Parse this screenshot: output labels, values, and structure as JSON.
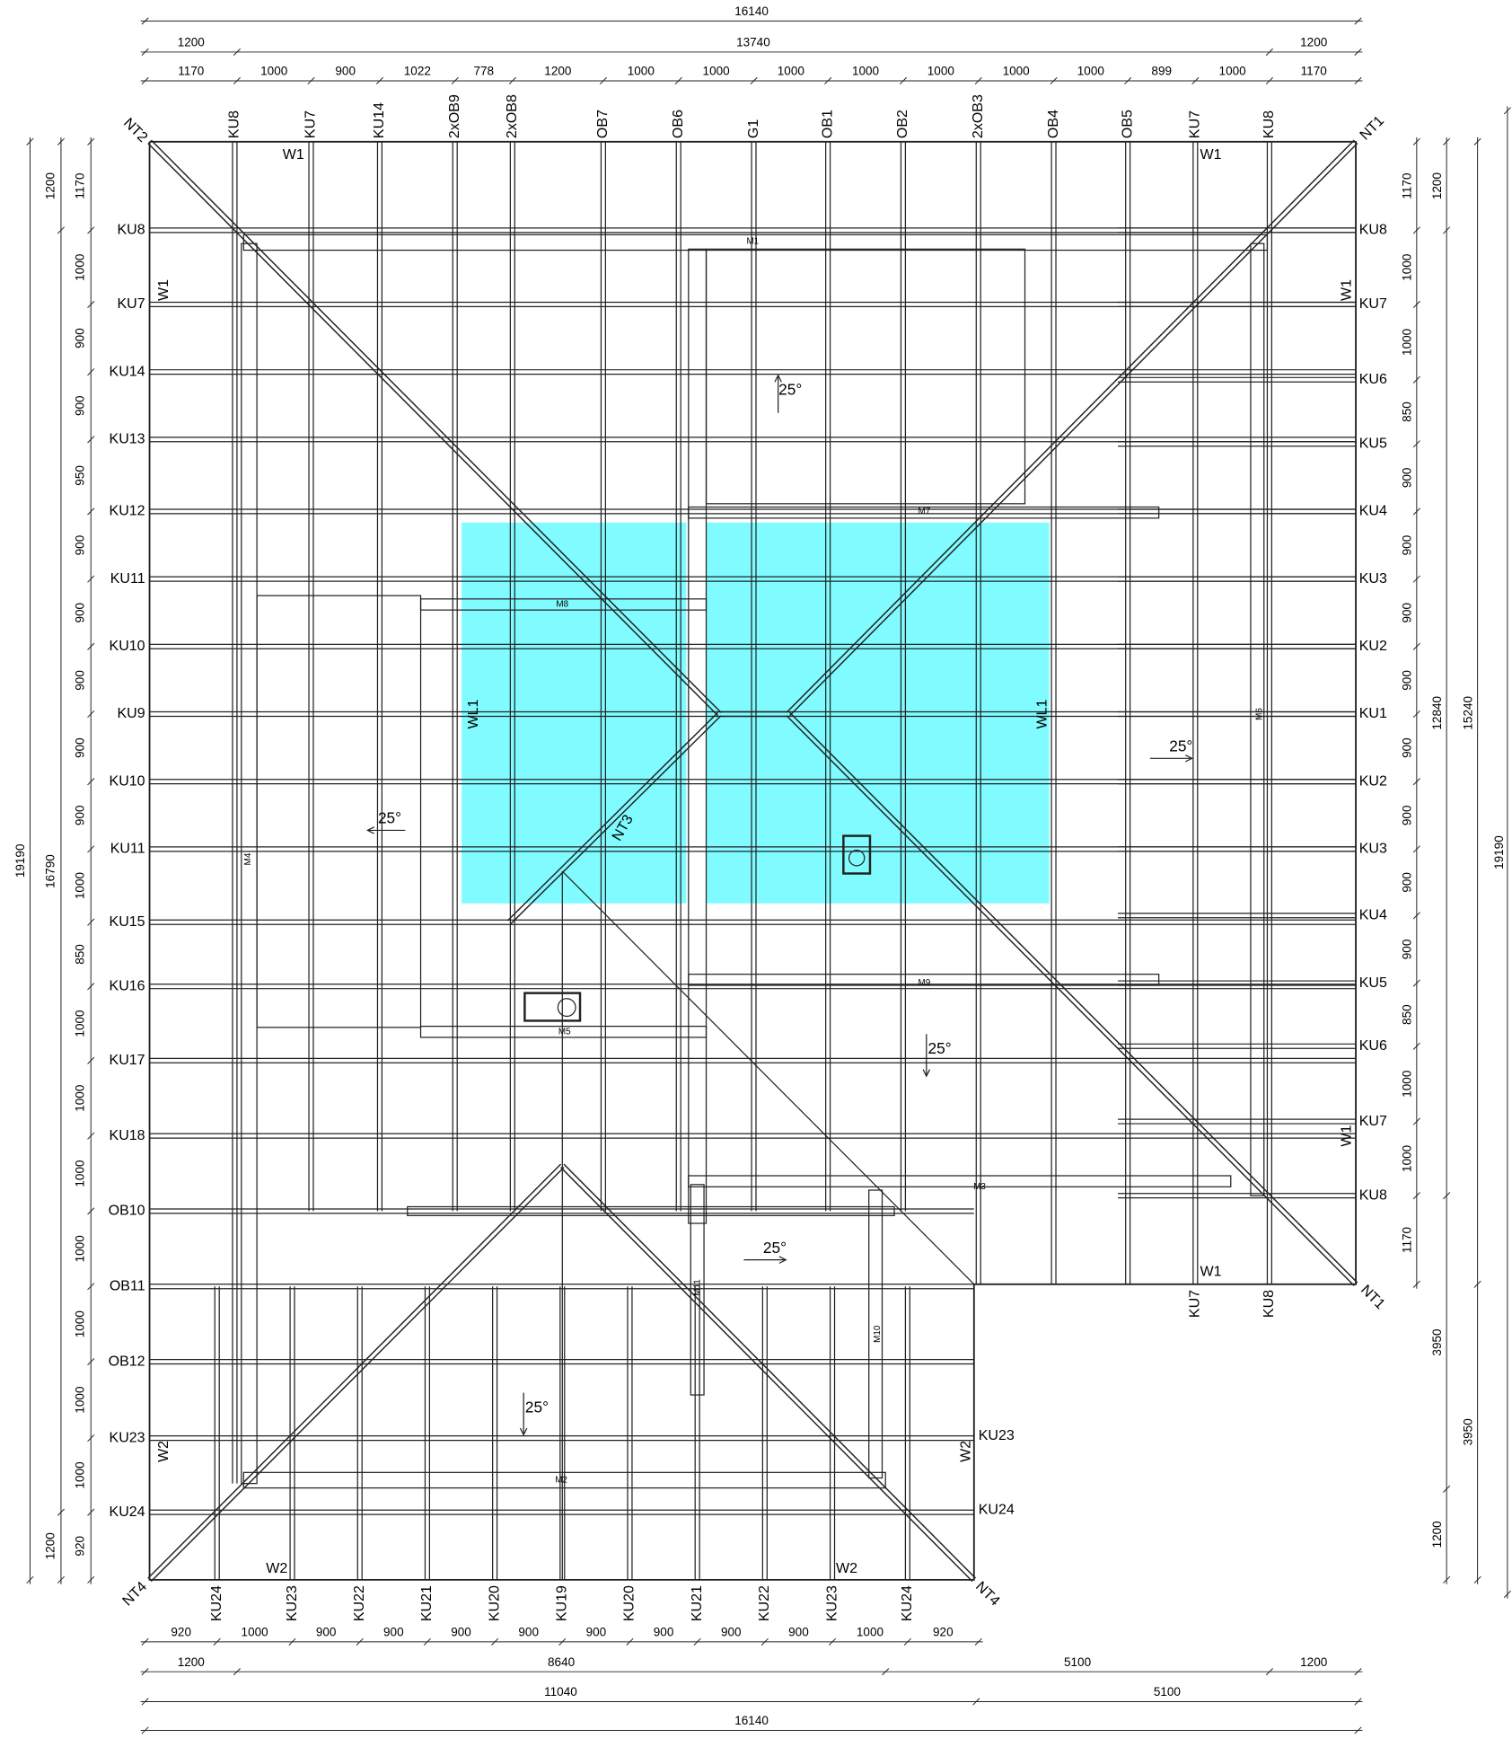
{
  "top_dimensions": {
    "total": 16140,
    "overall": [
      1200,
      13740,
      1200
    ],
    "spacing": [
      1170,
      1000,
      900,
      1022,
      778,
      1200,
      1000,
      1000,
      1000,
      1000,
      1000,
      1000,
      1000,
      899,
      1000,
      1170
    ]
  },
  "left_dimensions": {
    "total": 19190,
    "overall": [
      1200,
      16790,
      1200
    ],
    "spacing": [
      1170,
      1000,
      900,
      900,
      950,
      900,
      900,
      900,
      900,
      900,
      1000,
      850,
      1000,
      1000,
      1000,
      1000,
      1000,
      1000,
      1000,
      920
    ]
  },
  "right_dimensions": {
    "spacing": [
      1170,
      1000,
      1000,
      850,
      900,
      900,
      900,
      900,
      900,
      900,
      900,
      900,
      850,
      1000,
      1000,
      1170
    ],
    "overall": [
      1200,
      12840,
      3950,
      1200
    ],
    "sections": [
      15240,
      3950
    ],
    "total": 19190
  },
  "bottom_dimensions": {
    "spacing": [
      920,
      1000,
      900,
      900,
      900,
      900,
      900,
      900,
      900,
      900,
      1000,
      920
    ],
    "overall": [
      1200,
      8640,
      5100,
      1200
    ],
    "sections": [
      11040,
      5100
    ],
    "total": 16140
  },
  "rafters": {
    "top": [
      "KU8",
      "KU7",
      "KU14",
      "2xOB9",
      "2xOB8",
      "OB7",
      "OB6",
      "G1",
      "OB1",
      "OB2",
      "2xOB3",
      "OB4",
      "OB5",
      "KU7",
      "KU8"
    ],
    "left": [
      "KU8",
      "KU7",
      "KU14",
      "KU13",
      "KU12",
      "KU11",
      "KU10",
      "KU9",
      "KU10",
      "KU11",
      "KU15",
      "KU16",
      "KU17",
      "KU18",
      "OB10",
      "OB11",
      "OB12",
      "KU23",
      "KU24"
    ],
    "right": [
      "KU8",
      "KU7",
      "KU6",
      "KU5",
      "KU4",
      "KU3",
      "KU2",
      "KU1",
      "KU2",
      "KU3",
      "KU4",
      "KU5",
      "KU6",
      "KU7",
      "KU8"
    ],
    "right_wing": [
      "KU23",
      "KU24"
    ],
    "bottom": [
      "KU24",
      "KU23",
      "KU22",
      "KU21",
      "KU20",
      "KU19",
      "KU20",
      "KU21",
      "KU22",
      "KU23",
      "KU24"
    ],
    "bottom_right": [
      "KU7",
      "KU8"
    ]
  },
  "corners": [
    "NT2",
    "NT1",
    "NT1",
    "NT4",
    "NT4",
    "NT3"
  ],
  "walls": [
    "W1",
    "W1",
    "W1",
    "W1",
    "W1",
    "W1",
    "W2",
    "W2",
    "W2",
    "W2",
    "WL1",
    "WL1"
  ],
  "beams": [
    "M1",
    "M7",
    "M8",
    "M4",
    "M6",
    "M9",
    "M5",
    "M3",
    "M11",
    "M10",
    "M2"
  ],
  "pitches": [
    "25°",
    "25°",
    "25°",
    "25°",
    "25°",
    "25°"
  ]
}
